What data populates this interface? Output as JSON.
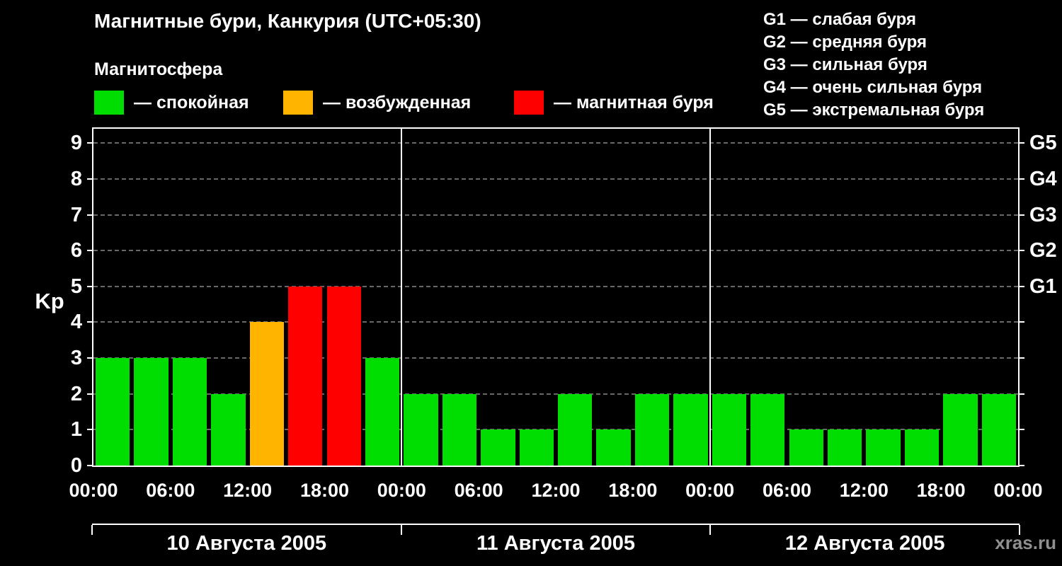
{
  "title": "Магнитные бури, Канкурия (UTC+05:30)",
  "magnetosphere": {
    "heading": "Магнитосфера",
    "items": [
      {
        "state": "quiet",
        "label": "— спокойная",
        "color": "#00dd00"
      },
      {
        "state": "excited",
        "label": "— возбужденная",
        "color": "#ffb400"
      },
      {
        "state": "storm",
        "label": "— магнитная буря",
        "color": "#ff0000"
      }
    ]
  },
  "storm_scale": [
    "G1 — слабая буря",
    "G2 — средняя буря",
    "G3 — сильная буря",
    "G4 — очень сильная буря",
    "G5 — экстремальная буря"
  ],
  "watermark": "xras.ru",
  "chart_data": {
    "type": "bar",
    "ylabel": "Kp",
    "ylim": [
      0,
      9.4
    ],
    "yticks": [
      0,
      1,
      2,
      3,
      4,
      5,
      6,
      7,
      8,
      9
    ],
    "right_axis": [
      {
        "label": "G1",
        "kp": 5
      },
      {
        "label": "G2",
        "kp": 6
      },
      {
        "label": "G3",
        "kp": 7
      },
      {
        "label": "G4",
        "kp": 8
      },
      {
        "label": "G5",
        "kp": 9
      }
    ],
    "time_ticks": [
      "00:00",
      "06:00",
      "12:00",
      "18:00"
    ],
    "end_time_label": "00:00",
    "bar_interval_hours": 3,
    "days": [
      {
        "date": "10 Августа 2005",
        "values": [
          3,
          3,
          3,
          2,
          4,
          5,
          5,
          3
        ]
      },
      {
        "date": "11 Августа 2005",
        "values": [
          2,
          2,
          1,
          1,
          2,
          1,
          2,
          2
        ]
      },
      {
        "date": "12 Августа 2005",
        "values": [
          2,
          2,
          1,
          1,
          1,
          1,
          2,
          2
        ]
      }
    ],
    "colors": {
      "quiet": "#00dd00",
      "excited": "#ffb400",
      "storm": "#ff0000"
    },
    "thresholds": {
      "excited_min": 4,
      "storm_min": 5
    },
    "grid": {
      "horizontal": "dashed",
      "day_dividers": "solid"
    },
    "legend_position": "top"
  }
}
